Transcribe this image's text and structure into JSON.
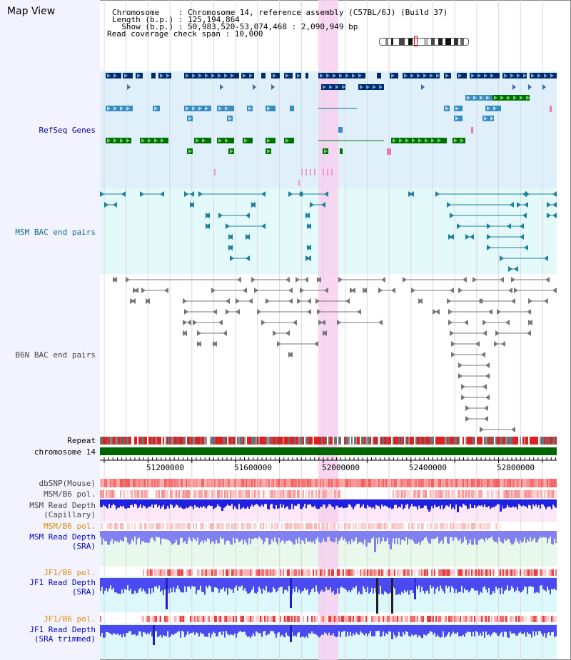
{
  "header": {
    "title": "Map View",
    "chromosome_line": "Chromosome    : Chromosome 14, reference assembly (C57BL/6J) (Build 37)",
    "length_line": "Length (b.p.) : 125,194,864",
    "show_line": "  Show (b.p.) : 50,983,520-53,074,468 : 2,090,949 bp",
    "coverage_line": "Read coverage check span : 10,000"
  },
  "tracks": {
    "refseq": "RefSeq Genes",
    "msm_bac": "MSM BAC end pairs",
    "b6n_bac": "B6N BAC end pairs",
    "repeat": "Repeat",
    "chromosome": "chromosome 14",
    "dbsnp": "dbSNP(Mouse)",
    "msm_b6_pol": "MSM/B6 pol.",
    "msm_depth_cap": "MSM Read Depth\n(Capillary)",
    "msm_b6_pol2": "MSM/B6 pol.",
    "msm_depth_sra": "MSM Read Depth\n(SRA)",
    "jf1_b6_pol": "JF1/B6 pol.",
    "jf1_depth_sra": "JF1 Read Depth\n(SRA)",
    "jf1_b6_pol2": "JF1/B6 pol.",
    "jf1_depth_trim": "JF1 Read Depth\n(SRA trimmed)"
  },
  "axis": {
    "ticks": [
      "51200000",
      "51600000",
      "52000000",
      "52400000",
      "52800000"
    ]
  },
  "colors": {
    "highlight": "#f8d0f0",
    "refseq_bg": "#dff0fa",
    "msm_bg": "#e4fafa",
    "navy_gene": "#002b6b",
    "light_gene": "#3a8bbf",
    "green_gene": "#007000",
    "chromosome_bar": "#006600",
    "depth_blue": "#3c3cf0"
  }
}
